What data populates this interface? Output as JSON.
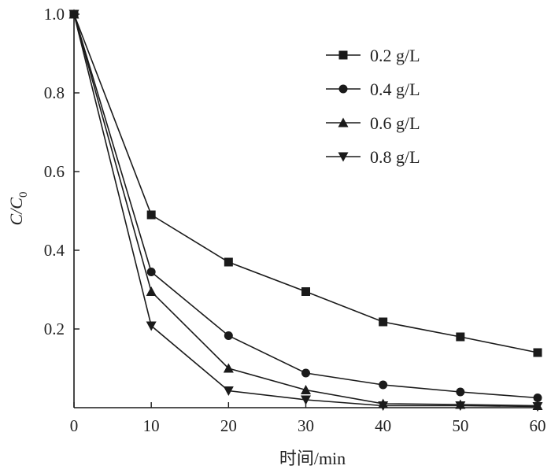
{
  "chart_data": {
    "type": "line",
    "xlabel": "时间/min",
    "ylabel": "C/C0",
    "ylabel_main": "C/C",
    "ylabel_sub": "0",
    "xlim": [
      0,
      60
    ],
    "ylim": [
      0,
      1.0
    ],
    "x": [
      0,
      10,
      20,
      30,
      40,
      50,
      60
    ],
    "xticks": [
      "0",
      "10",
      "20",
      "30",
      "40",
      "50",
      "60"
    ],
    "yticks": [
      "0.2",
      "0.4",
      "0.6",
      "0.8",
      "1.0"
    ],
    "ytick_values": [
      0.2,
      0.4,
      0.6,
      0.8,
      1.0
    ],
    "grid": false,
    "legend_position": "top-right",
    "series": [
      {
        "name": "0.2 g/L",
        "marker": "square",
        "values": [
          1.0,
          0.49,
          0.37,
          0.295,
          0.218,
          0.18,
          0.14
        ]
      },
      {
        "name": "0.4 g/L",
        "marker": "circle",
        "values": [
          1.0,
          0.345,
          0.183,
          0.088,
          0.058,
          0.04,
          0.025
        ]
      },
      {
        "name": "0.6 g/L",
        "marker": "triangle-up",
        "values": [
          1.0,
          0.295,
          0.1,
          0.045,
          0.01,
          0.008,
          0.005
        ]
      },
      {
        "name": "0.8 g/L",
        "marker": "triangle-down",
        "values": [
          1.0,
          0.208,
          0.043,
          0.02,
          0.005,
          0.005,
          0.003
        ]
      }
    ],
    "colors": {
      "ink": "#1a1a1a"
    }
  }
}
